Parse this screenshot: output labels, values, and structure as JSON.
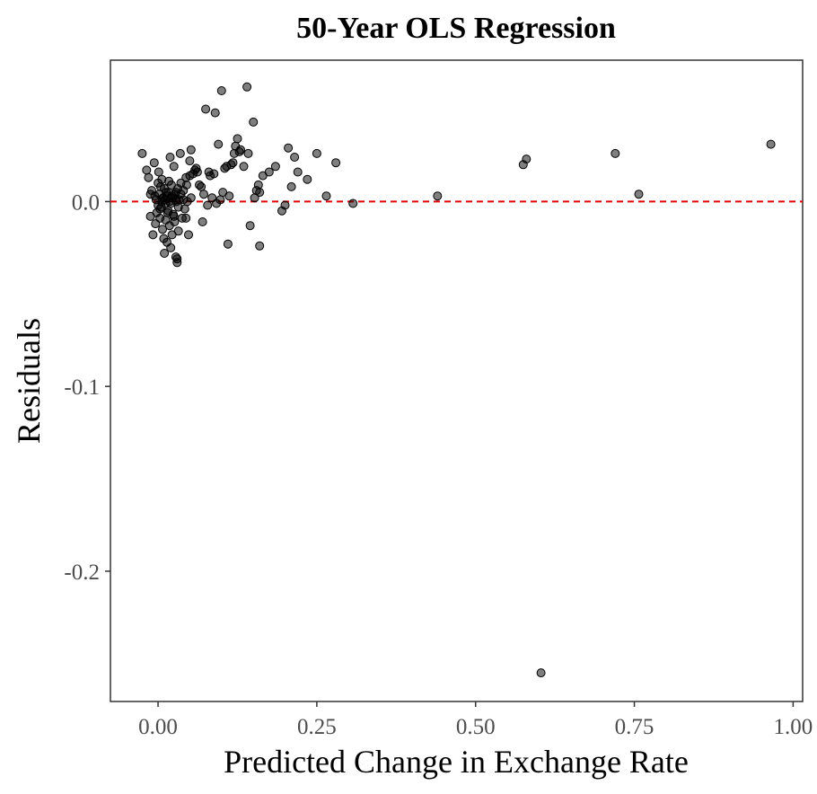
{
  "chart_data": {
    "type": "scatter",
    "title": "50-Year OLS Regression",
    "xlabel": "Predicted Change in Exchange Rate",
    "ylabel": "Residuals",
    "xlim": [
      -0.075,
      1.015
    ],
    "ylim": [
      -0.2705,
      0.0765
    ],
    "x_ticks": [
      0.0,
      0.25,
      0.5,
      0.75,
      1.0
    ],
    "x_tick_labels": [
      "0.00",
      "0.25",
      "0.50",
      "0.75",
      "1.00"
    ],
    "y_ticks": [
      0.0,
      -0.1,
      -0.2
    ],
    "y_tick_labels": [
      "0.0",
      "-0.1",
      "-0.2"
    ],
    "grid": false,
    "reference_line": {
      "y": 0,
      "color": "#e00000",
      "style": "dashed"
    },
    "point_color": "#000000",
    "x": [
      -0.025,
      -0.018,
      -0.015,
      -0.012,
      -0.01,
      -0.008,
      -0.006,
      -0.005,
      -0.004,
      -0.003,
      -0.002,
      0.0,
      0.0,
      0.001,
      0.002,
      0.003,
      0.004,
      0.005,
      0.006,
      0.007,
      0.008,
      0.009,
      0.01,
      0.01,
      0.011,
      0.012,
      0.013,
      0.014,
      0.015,
      0.016,
      0.017,
      0.018,
      0.019,
      0.02,
      0.021,
      0.022,
      0.023,
      0.024,
      0.025,
      0.026,
      0.027,
      0.028,
      0.029,
      0.03,
      0.031,
      0.032,
      0.033,
      0.035,
      0.036,
      0.038,
      0.04,
      0.042,
      0.044,
      0.046,
      0.048,
      0.05,
      0.052,
      0.055,
      0.06,
      0.065,
      0.07,
      0.075,
      0.08,
      0.085,
      0.09,
      0.095,
      0.1,
      0.105,
      0.11,
      0.115,
      0.12,
      0.125,
      0.13,
      0.135,
      0.14,
      0.145,
      0.15,
      0.155,
      0.16,
      0.165,
      0.175,
      0.185,
      0.195,
      0.2,
      0.205,
      0.21,
      0.215,
      0.22,
      0.235,
      0.25,
      0.265,
      0.28,
      0.307,
      0.44,
      0.575,
      0.58,
      0.603,
      0.72,
      0.757,
      0.965,
      0.003,
      0.008,
      0.012,
      0.015,
      0.018,
      0.022,
      0.025,
      0.028,
      0.032,
      0.045,
      0.05,
      0.058,
      0.062,
      0.068,
      0.072,
      0.078,
      0.082,
      0.088,
      0.092,
      0.098,
      0.102,
      0.108,
      0.112,
      0.118,
      0.122,
      0.128,
      0.142,
      0.152,
      0.158,
      0.16,
      0.036,
      0.04,
      0.044,
      0.028,
      0.02,
      0.016,
      0.006,
      -0.012,
      0.052,
      0.03
    ],
    "y": [
      0.026,
      0.017,
      0.013,
      -0.008,
      0.006,
      -0.018,
      0.021,
      0.003,
      -0.012,
      0.001,
      -0.006,
      0.01,
      -0.002,
      0.016,
      0.004,
      -0.009,
      0.008,
      -0.003,
      0.012,
      -0.015,
      0.002,
      -0.02,
      0.007,
      -0.028,
      0.001,
      -0.01,
      0.005,
      -0.022,
      0.003,
      -0.005,
      0.011,
      -0.013,
      0.024,
      -0.025,
      0.009,
      -0.018,
      0.002,
      -0.007,
      0.019,
      -0.011,
      0.004,
      -0.03,
      0.0,
      -0.033,
      0.007,
      -0.016,
      0.001,
      0.026,
      0.01,
      -0.009,
      0.006,
      -0.004,
      0.013,
      0.0,
      -0.018,
      0.022,
      0.028,
      0.015,
      0.018,
      0.009,
      -0.011,
      0.05,
      0.016,
      0.002,
      0.048,
      0.031,
      0.06,
      0.018,
      -0.023,
      0.02,
      0.026,
      0.034,
      0.028,
      0.019,
      0.062,
      -0.013,
      0.043,
      0.006,
      -0.024,
      0.014,
      0.016,
      0.019,
      -0.005,
      -0.002,
      0.029,
      0.008,
      0.024,
      0.016,
      0.012,
      0.026,
      0.003,
      0.021,
      -0.001,
      0.003,
      0.02,
      0.023,
      -0.255,
      0.026,
      0.004,
      0.031,
      -0.004,
      0.002,
      -0.001,
      -0.006,
      0.0,
      0.003,
      -0.008,
      0.005,
      -0.003,
      0.009,
      0.014,
      0.017,
      0.016,
      0.008,
      0.004,
      -0.002,
      0.014,
      0.015,
      -0.001,
      0.001,
      0.005,
      0.019,
      0.003,
      0.021,
      0.03,
      0.027,
      0.026,
      0.002,
      0.009,
      0.005,
      0.004,
      0.001,
      -0.009,
      0.001,
      -0.001,
      0.005,
      0.0,
      0.004,
      0.002,
      -0.031
    ]
  }
}
